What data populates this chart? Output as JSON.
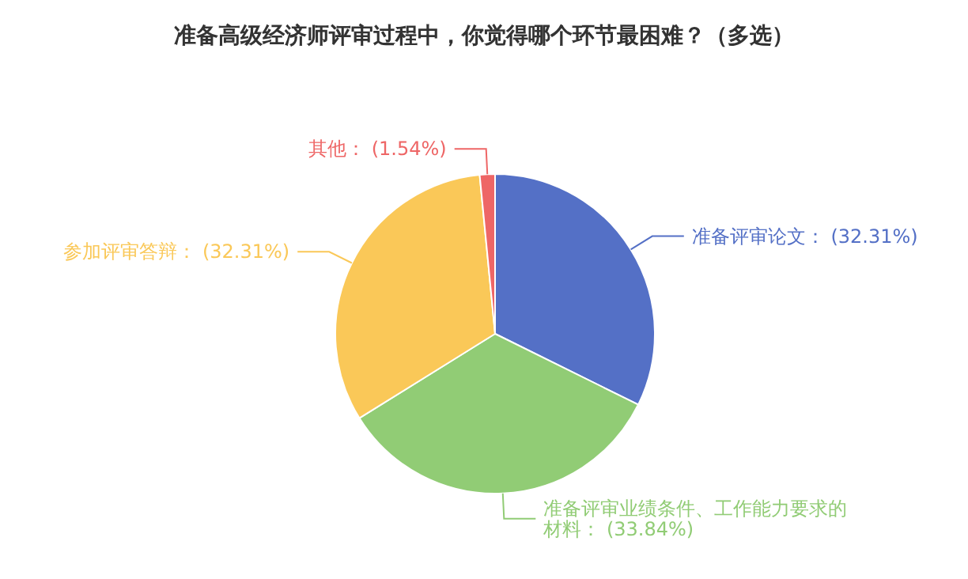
{
  "chart_data": {
    "type": "pie",
    "title": "准备高级经济师评审过程中，你觉得哪个环节最困难？（多选）",
    "categories": [
      "准备评审论文",
      "准备评审业绩条件、工作能力要求的材料",
      "参加评审答辩",
      "其他"
    ],
    "values": [
      32.31,
      33.84,
      32.31,
      1.54
    ],
    "value_labels": [
      "(32.31%)",
      "(33.84%)",
      "(32.31%)",
      "(1.54%)"
    ],
    "colors": [
      "#5470c6",
      "#91cc75",
      "#fac858",
      "#ee6666"
    ]
  }
}
